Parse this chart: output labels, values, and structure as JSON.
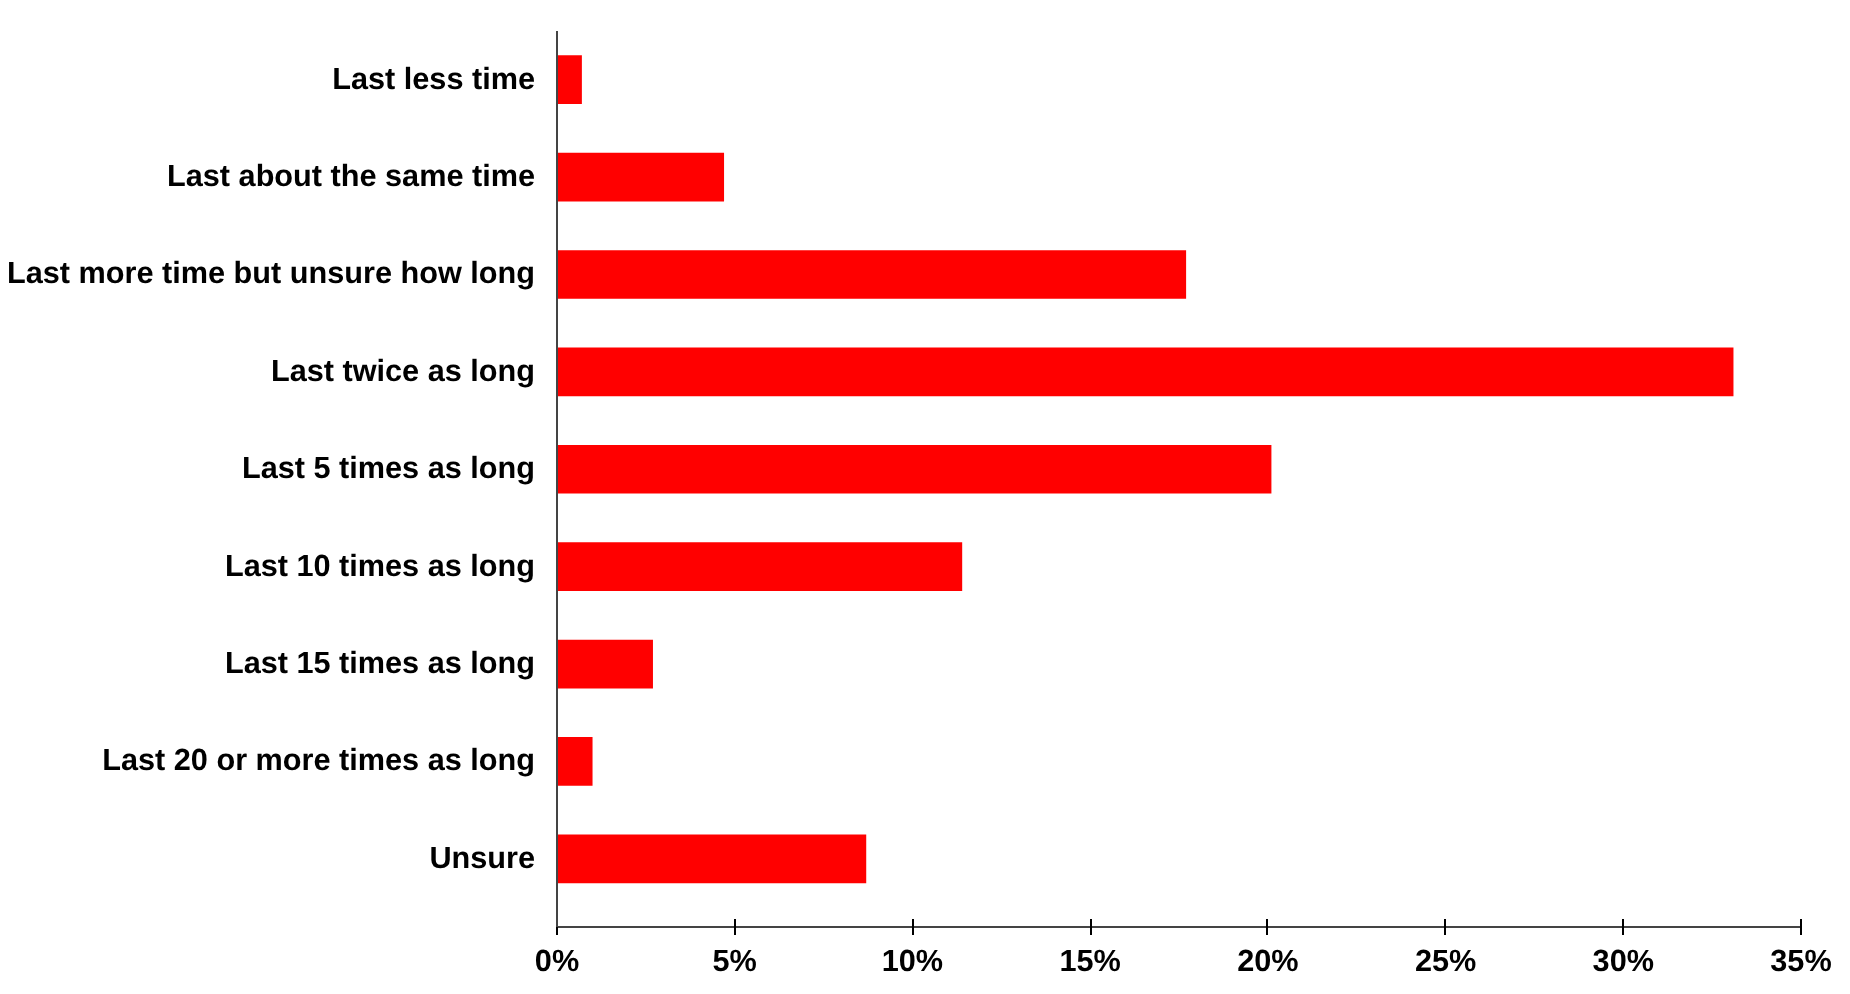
{
  "chart_data": {
    "type": "bar",
    "orientation": "horizontal",
    "categories": [
      "Last less time",
      "Last about the same time",
      "Last more time but unsure how long",
      "Last twice as long",
      "Last 5 times as long",
      "Last 10 times as long",
      "Last 15 times as long",
      "Last 20 or more times as long",
      "Unsure"
    ],
    "values": [
      0.7,
      4.7,
      17.7,
      33.1,
      20.1,
      11.4,
      2.7,
      1.0,
      8.7
    ],
    "color": "#ff0000",
    "xlim": [
      0,
      35
    ],
    "xticks": [
      {
        "value": 0,
        "label": "0%"
      },
      {
        "value": 5,
        "label": "5%"
      },
      {
        "value": 10,
        "label": "10%"
      },
      {
        "value": 15,
        "label": "15%"
      },
      {
        "value": 20,
        "label": "20%"
      },
      {
        "value": 25,
        "label": "25%"
      },
      {
        "value": 30,
        "label": "30%"
      },
      {
        "value": 35,
        "label": "35%"
      }
    ],
    "grid": false
  }
}
